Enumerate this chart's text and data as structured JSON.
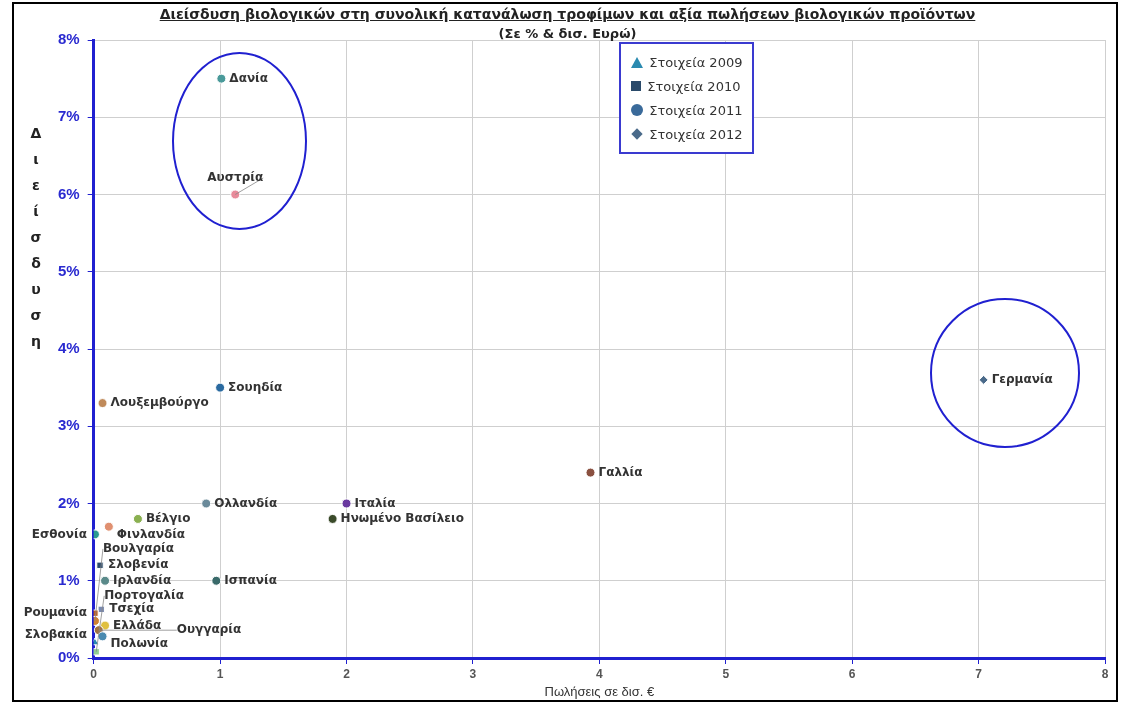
{
  "chart_data": {
    "type": "scatter",
    "title": "Διείσδυση  βιολογικών  στη συνολική κατανάλωση τροφίμων και αξία πωλήσεων βιολογικών προϊόντων",
    "subtitle": "(Σε % & δισ. Ευρώ)",
    "xlabel": "Πωλήσεις σε δισ. €",
    "ylabel": "Διείσδυση",
    "xlim": [
      0,
      8
    ],
    "xticks": [
      0,
      1,
      2,
      3,
      4,
      5,
      6,
      7,
      8
    ],
    "ylim": [
      0,
      8
    ],
    "yticks": [
      {
        "value": 0,
        "label": "0%"
      },
      {
        "value": 1,
        "label": "1%"
      },
      {
        "value": 2,
        "label": "2%"
      },
      {
        "value": 3,
        "label": "3%"
      },
      {
        "value": 4,
        "label": "4%"
      },
      {
        "value": 5,
        "label": "5%"
      },
      {
        "value": 6,
        "label": "6%"
      },
      {
        "value": 7,
        "label": "7%"
      },
      {
        "value": 8,
        "label": "8%"
      }
    ],
    "grid": true,
    "legend": "top",
    "series": [
      {
        "name": "Στοιχεία 2009",
        "color": "#2a8ab0",
        "marker": "triangle",
        "x": [
          0.01
        ],
        "values": [
          0.2
        ],
        "colors": [
          "#2a8ab0"
        ]
      },
      {
        "name": "Στοιχεία 2010",
        "color": "#2a4a6a",
        "marker": "square",
        "x": [
          0.05,
          0.06,
          0.01,
          0.02
        ],
        "values": [
          1.2,
          0.63,
          0.58,
          0.08
        ],
        "colors": [
          "#2a4a6a",
          "#7a8ab0",
          "#c06020",
          "#90d090"
        ]
      },
      {
        "name": "Στοιχεία 2011",
        "color": "#3a6a9a",
        "marker": "circle",
        "x": [
          1.01,
          1.12,
          1.0,
          0.07,
          3.93,
          2.0,
          0.89,
          1.89,
          0.35,
          0.12,
          0.01,
          0.09,
          0.97,
          0.01,
          0.09,
          0.04,
          0.07
        ],
        "values": [
          7.5,
          6.0,
          3.5,
          3.3,
          2.4,
          2.0,
          2.0,
          1.8,
          1.8,
          1.7,
          1.6,
          1.0,
          1.0,
          0.48,
          0.42,
          0.36,
          0.28
        ],
        "colors": [
          "#4a9a9a",
          "#e88a9a",
          "#2a6aa0",
          "#c08a5a",
          "#8a5040",
          "#6a3aa0",
          "#6a8a9a",
          "#3a4a2a",
          "#8ab050",
          "#e09070",
          "#2a9a90",
          "#5a8a8a",
          "#3a6a6a",
          "#d08030",
          "#e0c040",
          "#a07040",
          "#4a8ab0"
        ]
      },
      {
        "name": "Στοιχεία 2012",
        "color": "#4a6a8a",
        "marker": "diamond",
        "x": [
          7.04
        ],
        "values": [
          3.6
        ],
        "colors": [
          "#4a6a8a"
        ]
      }
    ],
    "annotations": [
      {
        "text": "Σλοβακία",
        "x": 0.01,
        "y": 0.2
      },
      {
        "text": "Σλοβενία",
        "x": 0.05,
        "y": 1.2
      },
      {
        "text": "Τσεχία",
        "x": 0.06,
        "y": 0.63
      },
      {
        "text": "Ρουμανία",
        "x": 0.01,
        "y": 0.58
      },
      {
        "text": "Πορτογαλία",
        "x": 0.02,
        "y": 0.08
      },
      {
        "text": "Δανία",
        "x": 1.01,
        "y": 7.5
      },
      {
        "text": "Αυστρία",
        "x": 1.12,
        "y": 6.0
      },
      {
        "text": "Σουηδία",
        "x": 1.0,
        "y": 3.5
      },
      {
        "text": "Λουξεμβούργο",
        "x": 0.07,
        "y": 3.3
      },
      {
        "text": "Γαλλία",
        "x": 3.93,
        "y": 2.4
      },
      {
        "text": "Ιταλία",
        "x": 2.0,
        "y": 2.0
      },
      {
        "text": "Ολλανδία",
        "x": 0.89,
        "y": 2.0
      },
      {
        "text": "Ηνωμένο Βασίλειο",
        "x": 1.89,
        "y": 1.8
      },
      {
        "text": "Βέλγιο",
        "x": 0.35,
        "y": 1.8
      },
      {
        "text": "Φινλανδία",
        "x": 0.12,
        "y": 1.7
      },
      {
        "text": "Εσθονία",
        "x": 0.01,
        "y": 1.6
      },
      {
        "text": "Ιρλανδία",
        "x": 0.09,
        "y": 1.0
      },
      {
        "text": "Ισπανία",
        "x": 0.97,
        "y": 1.0
      },
      {
        "text": "Βουλγαρία",
        "x": 0.01,
        "y": 0.48
      },
      {
        "text": "Ελλάδα",
        "x": 0.09,
        "y": 0.42
      },
      {
        "text": "Ουγγαρία",
        "x": 0.04,
        "y": 0.36
      },
      {
        "text": "Πολωνία",
        "x": 0.07,
        "y": 0.28
      },
      {
        "text": "Γερμανία",
        "x": 7.04,
        "y": 3.6
      }
    ]
  }
}
